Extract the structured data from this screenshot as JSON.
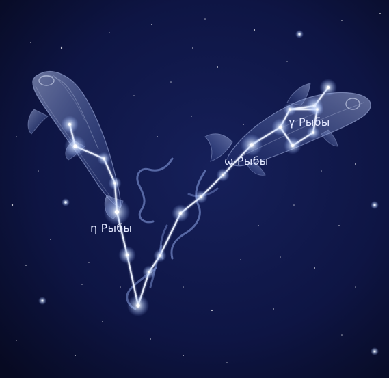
{
  "labels": {
    "eta": "η Рыбы",
    "omega": "ω Рыбы",
    "gamma": "γ Рыбы"
  },
  "colors": {
    "sky_center": "#16205a",
    "sky_edge": "#070a22",
    "fish_fill": "#9db5ef",
    "fish_outline": "#b9c8f5",
    "constellation_line": "#eef3ff",
    "star": "#ffffff",
    "label": "#e3e8ff"
  },
  "icons": {
    "fish": "fish-figure",
    "star": "star-glow",
    "ribbon": "ribbon-cord"
  }
}
